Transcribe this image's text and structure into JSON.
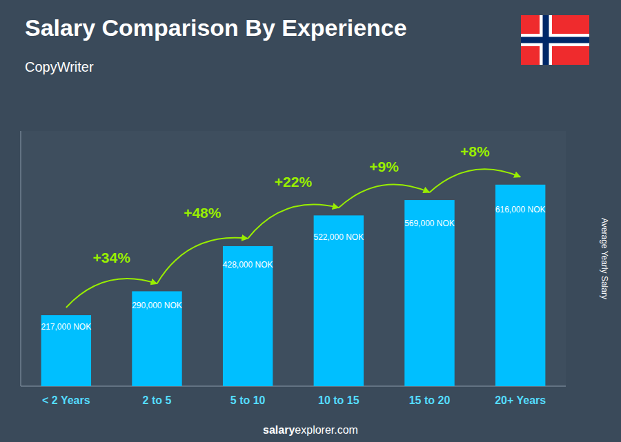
{
  "chart_data": {
    "type": "bar",
    "title": "Salary Comparison By Experience",
    "subtitle": "CopyWriter",
    "ylabel": "Average Yearly Salary",
    "footer": [
      "salary",
      "explorer.com"
    ],
    "categories": [
      "< 2 Years",
      "2 to 5",
      "5 to 10",
      "10 to 15",
      "15 to 20",
      "20+ Years"
    ],
    "values": [
      217000,
      290000,
      428000,
      522000,
      569000,
      616000
    ],
    "value_labels": [
      "217,000 NOK",
      "290,000 NOK",
      "428,000 NOK",
      "522,000 NOK",
      "569,000 NOK",
      "616,000 NOK"
    ],
    "data_labels": true,
    "annotations": [
      "+34%",
      "+48%",
      "+22%",
      "+9%",
      "+8%"
    ],
    "color": "#00BFFF",
    "ylim": [
      0,
      780000
    ],
    "grid": false,
    "tick_labels": "x"
  }
}
